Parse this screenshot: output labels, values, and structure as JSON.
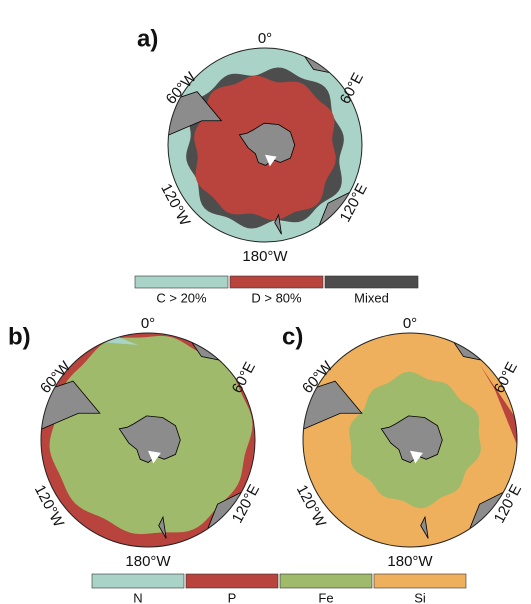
{
  "panels": [
    {
      "label": "a)",
      "longitudes": {
        "top": "0°",
        "upper_left": "60°W",
        "upper_right": "60°E",
        "lower_left": "120°W",
        "lower_right": "120°E",
        "bottom": "180°W"
      }
    },
    {
      "label": "b)",
      "longitudes": {
        "top": "0°",
        "upper_left": "60°W",
        "upper_right": "60°E",
        "lower_left": "120°W",
        "lower_right": "120°E",
        "bottom": "180°W"
      }
    },
    {
      "label": "c)",
      "longitudes": {
        "top": "0°",
        "upper_left": "60°W",
        "upper_right": "60°E",
        "lower_left": "120°W",
        "lower_right": "120°E",
        "bottom": "180°W"
      }
    }
  ],
  "legend_a": [
    {
      "label": "C > 20%",
      "color": "#a9d3c6"
    },
    {
      "label": "D > 80%",
      "color": "#b9433d"
    },
    {
      "label": "Mixed",
      "color": "#4d4d4d"
    }
  ],
  "legend_bc": [
    {
      "label": "N",
      "color": "#a9d3c6"
    },
    {
      "label": "P",
      "color": "#b9433d"
    },
    {
      "label": "Fe",
      "color": "#9fba6a"
    },
    {
      "label": "Si",
      "color": "#eeb05c"
    }
  ]
}
